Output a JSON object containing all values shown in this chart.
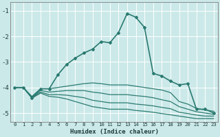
{
  "xlabel": "Humidex (Indice chaleur)",
  "background_color": "#cce9e9",
  "grid_color": "#ffffff",
  "line_color": "#2a7a70",
  "xlim": [
    -0.5,
    23.5
  ],
  "ylim": [
    -5.35,
    -0.65
  ],
  "yticks": [
    -5,
    -4,
    -3,
    -2,
    -1
  ],
  "xticks": [
    0,
    1,
    2,
    3,
    4,
    5,
    6,
    7,
    8,
    9,
    10,
    11,
    12,
    13,
    14,
    15,
    16,
    17,
    18,
    19,
    20,
    21,
    22,
    23
  ],
  "series": [
    {
      "x": [
        0,
        1,
        2,
        3,
        4,
        5,
        6,
        7,
        8,
        9,
        10,
        11,
        12,
        13,
        14,
        15,
        16,
        17,
        18,
        19,
        20,
        21,
        22,
        23
      ],
      "y": [
        -4.0,
        -4.0,
        -4.4,
        -4.05,
        -4.05,
        -3.5,
        -3.1,
        -2.85,
        -2.65,
        -2.5,
        -2.2,
        -2.25,
        -1.85,
        -1.1,
        -1.25,
        -1.65,
        -3.45,
        -3.55,
        -3.75,
        -3.9,
        -3.85,
        -4.85,
        -4.85,
        -5.0
      ],
      "marker": "D",
      "markersize": 2.0,
      "linewidth": 1.2
    },
    {
      "x": [
        0,
        1,
        2,
        3,
        4,
        5,
        6,
        7,
        8,
        9,
        10,
        11,
        12,
        13,
        14,
        15,
        16,
        17,
        18,
        19,
        20,
        21,
        22,
        23
      ],
      "y": [
        -4.0,
        -4.0,
        -4.35,
        -4.05,
        -4.05,
        -4.0,
        -3.95,
        -3.9,
        -3.85,
        -3.82,
        -3.85,
        -3.9,
        -3.9,
        -3.9,
        -3.95,
        -4.0,
        -4.05,
        -4.1,
        -4.2,
        -4.55,
        -4.65,
        -4.82,
        -4.88,
        -4.93
      ],
      "marker": null,
      "linewidth": 0.9
    },
    {
      "x": [
        0,
        1,
        2,
        3,
        4,
        5,
        6,
        7,
        8,
        9,
        10,
        11,
        12,
        13,
        14,
        15,
        16,
        17,
        18,
        19,
        20,
        21,
        22,
        23
      ],
      "y": [
        -4.0,
        -4.0,
        -4.38,
        -4.12,
        -4.18,
        -4.15,
        -4.12,
        -4.12,
        -4.12,
        -4.18,
        -4.22,
        -4.28,
        -4.28,
        -4.28,
        -4.32,
        -4.35,
        -4.4,
        -4.48,
        -4.55,
        -4.75,
        -4.85,
        -4.95,
        -5.0,
        -5.05
      ],
      "marker": null,
      "linewidth": 0.9
    },
    {
      "x": [
        0,
        1,
        2,
        3,
        4,
        5,
        6,
        7,
        8,
        9,
        10,
        11,
        12,
        13,
        14,
        15,
        16,
        17,
        18,
        19,
        20,
        21,
        22,
        23
      ],
      "y": [
        -4.0,
        -4.0,
        -4.4,
        -4.18,
        -4.28,
        -4.28,
        -4.3,
        -4.35,
        -4.4,
        -4.5,
        -4.55,
        -4.6,
        -4.6,
        -4.6,
        -4.65,
        -4.68,
        -4.72,
        -4.78,
        -4.83,
        -4.97,
        -5.02,
        -5.08,
        -5.12,
        -5.12
      ],
      "marker": null,
      "linewidth": 0.9
    },
    {
      "x": [
        0,
        1,
        2,
        3,
        4,
        5,
        6,
        7,
        8,
        9,
        10,
        11,
        12,
        13,
        14,
        15,
        16,
        17,
        18,
        19,
        20,
        21,
        22,
        23
      ],
      "y": [
        -4.0,
        -4.0,
        -4.42,
        -4.22,
        -4.35,
        -4.38,
        -4.45,
        -4.55,
        -4.65,
        -4.75,
        -4.8,
        -4.85,
        -4.85,
        -4.85,
        -4.9,
        -4.93,
        -4.97,
        -5.02,
        -5.07,
        -5.12,
        -5.17,
        -5.22,
        -5.22,
        -5.22
      ],
      "marker": null,
      "linewidth": 0.9
    }
  ]
}
